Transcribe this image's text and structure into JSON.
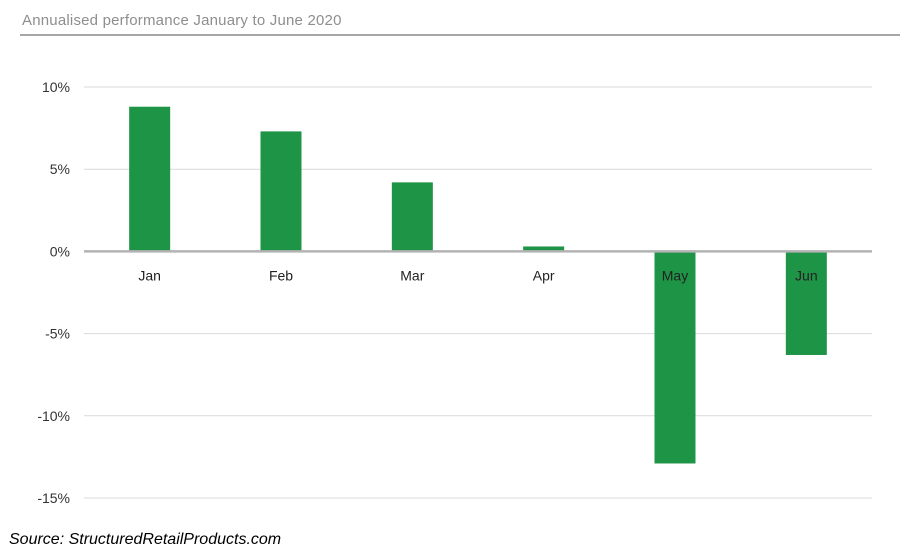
{
  "title": "Annualised performance January to June 2020",
  "source": "Source: StructuredRetailProducts.com",
  "colors": {
    "bar": "#1e9446",
    "grid": "#d9d9d9",
    "zero_line": "#b3b3b3",
    "tick_text": "#333333"
  },
  "chart_data": {
    "type": "bar",
    "title": "Annualised performance January to June 2020",
    "categories": [
      "Jan",
      "Feb",
      "Mar",
      "Apr",
      "May",
      "Jun"
    ],
    "values": [
      8.8,
      7.3,
      4.2,
      0.3,
      -12.9,
      -6.3
    ],
    "ylim": [
      -15,
      10
    ],
    "yticks": [
      10,
      5,
      0,
      -5,
      -10,
      -15
    ],
    "ytick_labels": [
      "10%",
      "5%",
      "0%",
      "-5%",
      "-10%",
      "-15%"
    ],
    "xlabel": "",
    "ylabel": "",
    "grid": true,
    "legend": "none"
  }
}
